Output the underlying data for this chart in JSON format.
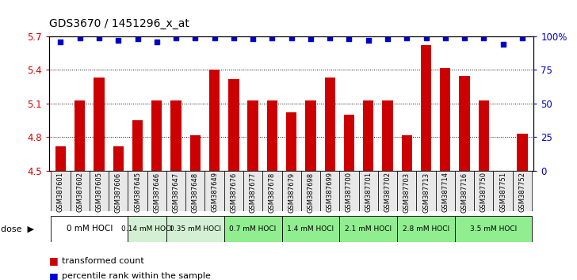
{
  "title": "GDS3670 / 1451296_x_at",
  "samples": [
    "GSM387601",
    "GSM387602",
    "GSM387605",
    "GSM387606",
    "GSM387645",
    "GSM387646",
    "GSM387647",
    "GSM387648",
    "GSM387649",
    "GSM387676",
    "GSM387677",
    "GSM387678",
    "GSM387679",
    "GSM387698",
    "GSM387699",
    "GSM387700",
    "GSM387701",
    "GSM387702",
    "GSM387703",
    "GSM387713",
    "GSM387714",
    "GSM387716",
    "GSM387750",
    "GSM387751",
    "GSM387752"
  ],
  "bar_values": [
    4.72,
    5.13,
    5.33,
    4.72,
    4.95,
    5.13,
    5.13,
    4.82,
    5.4,
    5.32,
    5.13,
    5.13,
    5.02,
    5.13,
    5.33,
    5.0,
    5.13,
    5.13,
    4.82,
    5.62,
    5.42,
    5.35,
    5.13,
    4.5,
    4.83
  ],
  "percentile_values": [
    96,
    99,
    99,
    97,
    98,
    96,
    99,
    99,
    99,
    99,
    98,
    99,
    99,
    98,
    99,
    98,
    97,
    98,
    99,
    99,
    99,
    99,
    99,
    94,
    99
  ],
  "dose_groups": [
    {
      "label": "0 mM HOCl",
      "start": 0,
      "end": 4,
      "color": "#ffffff"
    },
    {
      "label": "0.14 mM HOCl",
      "start": 4,
      "end": 6,
      "color": "#d4f0d4"
    },
    {
      "label": "0.35 mM HOCl",
      "start": 6,
      "end": 9,
      "color": "#d4f0d4"
    },
    {
      "label": "0.7 mM HOCl",
      "start": 9,
      "end": 12,
      "color": "#90ee90"
    },
    {
      "label": "1.4 mM HOCl",
      "start": 12,
      "end": 15,
      "color": "#90ee90"
    },
    {
      "label": "2.1 mM HOCl",
      "start": 15,
      "end": 18,
      "color": "#90ee90"
    },
    {
      "label": "2.8 mM HOCl",
      "start": 18,
      "end": 21,
      "color": "#90ee90"
    },
    {
      "label": "3.5 mM HOCl",
      "start": 21,
      "end": 25,
      "color": "#90ee90"
    }
  ],
  "bar_color": "#cc0000",
  "percentile_color": "#0000cc",
  "ylim_left": [
    4.5,
    5.7
  ],
  "yticks_left": [
    4.5,
    4.8,
    5.1,
    5.4,
    5.7
  ],
  "yticks_right": [
    0,
    25,
    50,
    75,
    100
  ],
  "ylabel_right_labels": [
    "0",
    "25",
    "50",
    "75",
    "100%"
  ],
  "background_color": "#ffffff",
  "legend_bar_label": "transformed count",
  "legend_percentile_label": "percentile rank within the sample"
}
